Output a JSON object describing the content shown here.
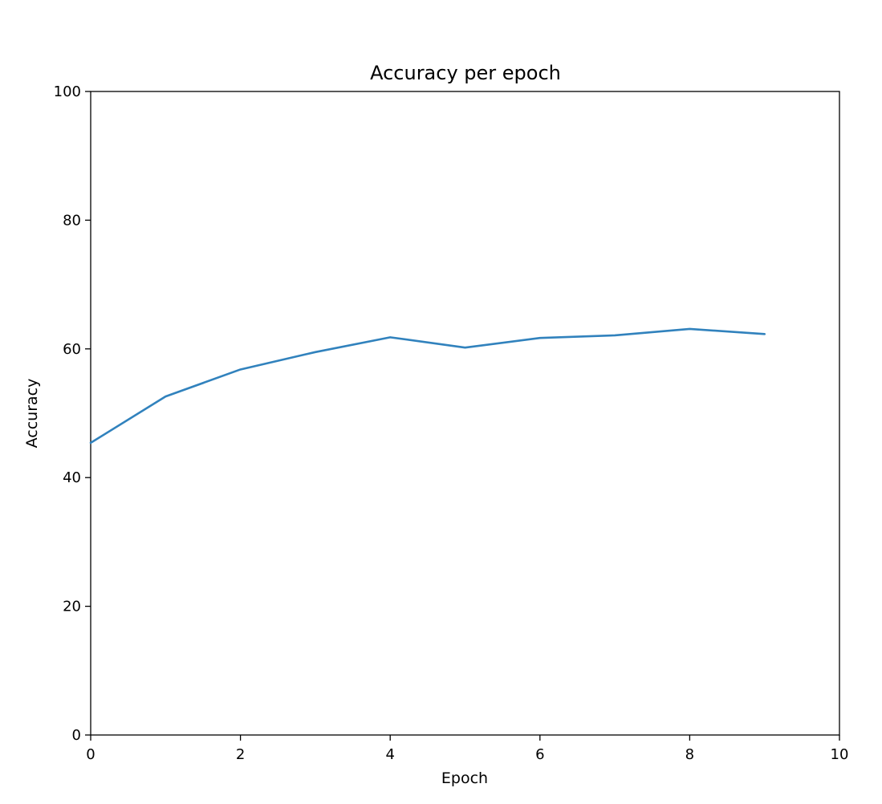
{
  "chart_data": {
    "type": "line",
    "title": "Accuracy per epoch",
    "xlabel": "Epoch",
    "ylabel": "Accuracy",
    "xlim": [
      0,
      10
    ],
    "ylim": [
      0,
      100
    ],
    "xticks": [
      "0",
      "2",
      "4",
      "6",
      "8",
      "10"
    ],
    "yticks": [
      "0",
      "20",
      "40",
      "60",
      "80",
      "100"
    ],
    "grid": false,
    "series": [
      {
        "color": "#3182bd",
        "x": [
          0,
          1,
          2,
          3,
          4,
          5,
          6,
          7,
          8,
          9
        ],
        "y": [
          45.4,
          52.6,
          56.8,
          59.5,
          61.8,
          60.2,
          61.7,
          62.1,
          63.1,
          62.3
        ]
      }
    ]
  }
}
